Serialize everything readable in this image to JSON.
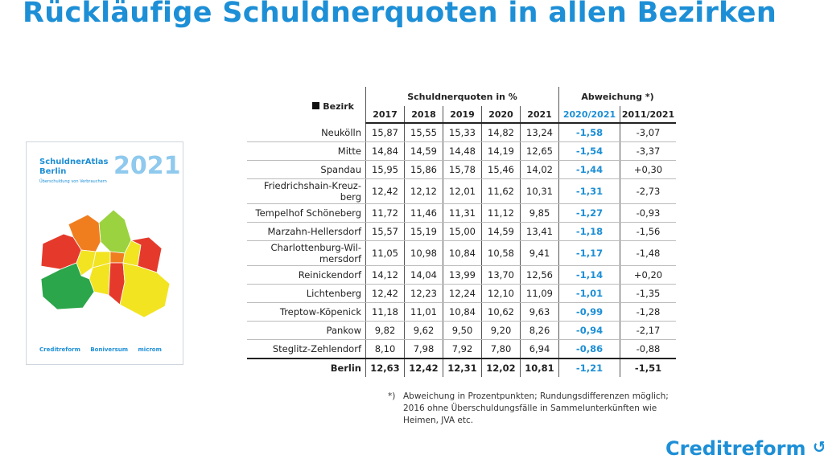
{
  "title": "Rückläufige Schuldnerquoten in allen Bezirken",
  "cover": {
    "title_line1": "SchuldnerAtlas",
    "title_line2": "Berlin",
    "subtitle": "Überschuldung von Verbrauchern",
    "year": "2021",
    "logos": [
      "Creditreform",
      "Boniversum",
      "microm"
    ]
  },
  "table": {
    "bezirk_label": "Bezirk",
    "group1": "Schuldnerquoten in %",
    "group2": "Abweichung *)",
    "years": [
      "2017",
      "2018",
      "2019",
      "2020",
      "2021"
    ],
    "dev_headers": [
      "2020/2021",
      "2011/2021"
    ],
    "rows": [
      {
        "name": "Neukölln",
        "v": [
          "15,87",
          "15,55",
          "15,33",
          "14,82",
          "13,24"
        ],
        "d1": "-1,58",
        "d2": "-3,07"
      },
      {
        "name": "Mitte",
        "v": [
          "14,84",
          "14,59",
          "14,48",
          "14,19",
          "12,65"
        ],
        "d1": "-1,54",
        "d2": "-3,37"
      },
      {
        "name": "Spandau",
        "v": [
          "15,95",
          "15,86",
          "15,78",
          "15,46",
          "14,02"
        ],
        "d1": "-1,44",
        "d2": "+0,30"
      },
      {
        "name": "Friedrichshain-Kreuz-berg",
        "l1": "Friedrichshain-Kreuz-",
        "l2": "berg",
        "v": [
          "12,42",
          "12,12",
          "12,01",
          "11,62",
          "10,31"
        ],
        "d1": "-1,31",
        "d2": "-2,73"
      },
      {
        "name": "Tempelhof Schöneberg",
        "v": [
          "11,72",
          "11,46",
          "11,31",
          "11,12",
          "9,85"
        ],
        "d1": "-1,27",
        "d2": "-0,93"
      },
      {
        "name": "Marzahn-Hellersdorf",
        "v": [
          "15,57",
          "15,19",
          "15,00",
          "14,59",
          "13,41"
        ],
        "d1": "-1,18",
        "d2": "-1,56"
      },
      {
        "name": "Charlottenburg-Wil-mersdorf",
        "l1": "Charlottenburg-Wil-",
        "l2": "mersdorf",
        "v": [
          "11,05",
          "10,98",
          "10,84",
          "10,58",
          "9,41"
        ],
        "d1": "-1,17",
        "d2": "-1,48"
      },
      {
        "name": "Reinickendorf",
        "v": [
          "14,12",
          "14,04",
          "13,99",
          "13,70",
          "12,56"
        ],
        "d1": "-1,14",
        "d2": "+0,20"
      },
      {
        "name": "Lichtenberg",
        "v": [
          "12,42",
          "12,23",
          "12,24",
          "12,10",
          "11,09"
        ],
        "d1": "-1,01",
        "d2": "-1,35"
      },
      {
        "name": "Treptow-Köpenick",
        "v": [
          "11,18",
          "11,01",
          "10,84",
          "10,62",
          "9,63"
        ],
        "d1": "-0,99",
        "d2": "-1,28"
      },
      {
        "name": "Pankow",
        "v": [
          "9,82",
          "9,62",
          "9,50",
          "9,20",
          "8,26"
        ],
        "d1": "-0,94",
        "d2": "-2,17"
      },
      {
        "name": "Steglitz-Zehlendorf",
        "v": [
          "8,10",
          "7,98",
          "7,92",
          "7,80",
          "6,94"
        ],
        "d1": "-0,86",
        "d2": "-0,88"
      }
    ],
    "total": {
      "name": "Berlin",
      "v": [
        "12,63",
        "12,42",
        "12,31",
        "12,02",
        "10,81"
      ],
      "d1": "-1,21",
      "d2": "-1,51"
    }
  },
  "footnote": {
    "mark": "*)",
    "text": "Abweichung in Prozentpunkten; Rundungsdifferenzen möglich; 2016 ohne Überschuldungsfälle in Sammelunterkünften wie Heimen, JVA etc."
  },
  "logo": "Creditreform",
  "colors": {
    "accent": "#1d8fd6",
    "map_red": "#e53a2b",
    "map_orange": "#f07e1f",
    "map_yellow": "#f2e421",
    "map_green": "#9bd23f",
    "map_darkgreen": "#2ba64a"
  }
}
